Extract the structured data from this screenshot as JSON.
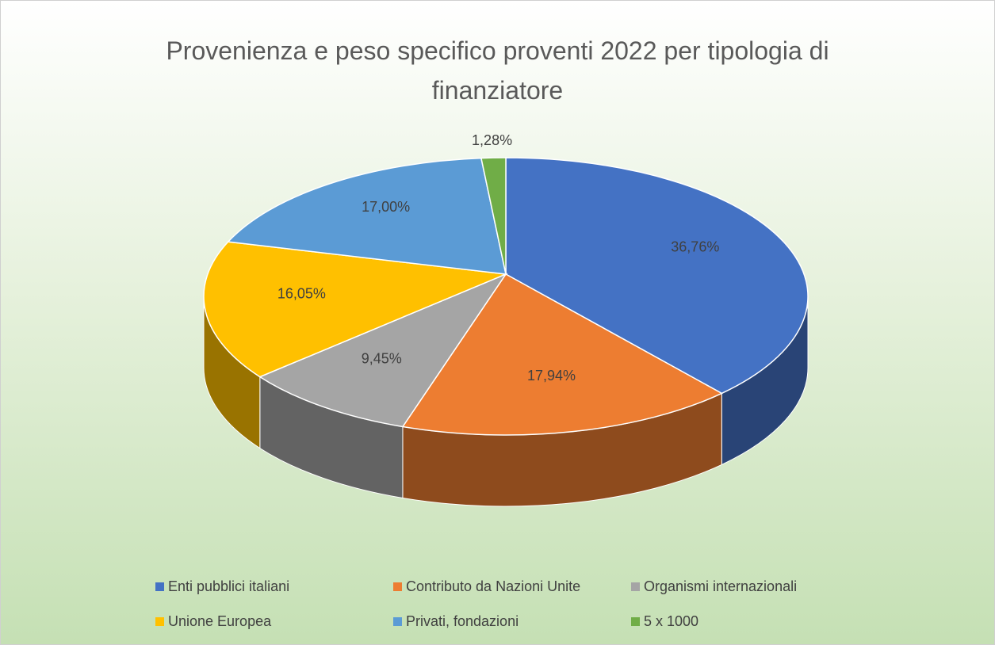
{
  "chart_data": {
    "type": "pie3d",
    "title": "Provenienza e peso specifico proventi 2022  per tipologia di finanziatore",
    "categories": [
      "Enti pubblici italiani",
      "Contributo da Nazioni Unite",
      "Organismi internazionali",
      "Unione Europea",
      "Privati, fondazioni",
      "5 x 1000"
    ],
    "values": [
      36.76,
      17.94,
      9.45,
      16.05,
      17.0,
      1.28
    ],
    "value_labels": [
      "36,76%",
      "17,94%",
      "9,45%",
      "16,05%",
      "17,00%",
      "1,28%"
    ],
    "colors": [
      "#4472c4",
      "#ed7d31",
      "#a5a5a5",
      "#ffc000",
      "#5b9bd5",
      "#70ad47"
    ],
    "legend": "bottom"
  }
}
